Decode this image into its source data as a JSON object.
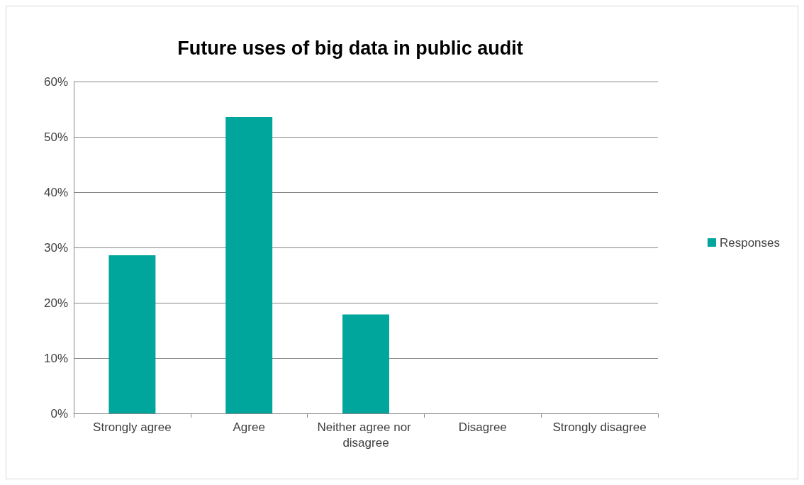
{
  "chart_data": {
    "type": "bar",
    "title": "Future uses of big data in public audit",
    "categories": [
      "Strongly agree",
      "Agree",
      "Neither agree nor disagree",
      "Disagree",
      "Strongly disagree"
    ],
    "series": [
      {
        "name": "Responses",
        "color": "#00a59b",
        "values": [
          28.6,
          53.6,
          17.9,
          0,
          0
        ]
      }
    ],
    "ylim": [
      0,
      60
    ],
    "yticks": [
      {
        "value": 0,
        "label": "0%"
      },
      {
        "value": 10,
        "label": "10%"
      },
      {
        "value": 20,
        "label": "20%"
      },
      {
        "value": 30,
        "label": "30%"
      },
      {
        "value": 40,
        "label": "40%"
      },
      {
        "value": 50,
        "label": "50%"
      },
      {
        "value": 60,
        "label": "60%"
      }
    ],
    "grid": "y",
    "legend": "right"
  }
}
